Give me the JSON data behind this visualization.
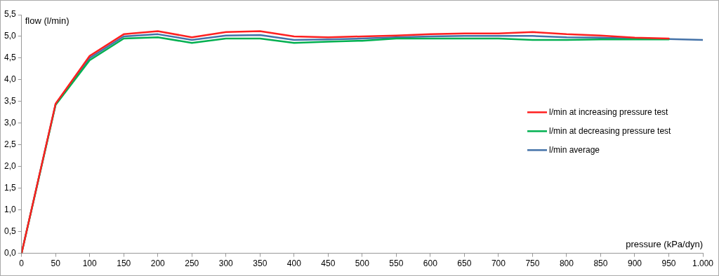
{
  "chart_data": {
    "type": "line",
    "xlabel": "pressure (kPa/dyn)",
    "ylabel": "flow (l/min)",
    "xlim": [
      0,
      1000
    ],
    "xticks": [
      0,
      50,
      100,
      150,
      200,
      250,
      300,
      350,
      400,
      450,
      500,
      550,
      600,
      650,
      700,
      750,
      800,
      850,
      900,
      950,
      {
        "value": 1000,
        "label": "1.000"
      }
    ],
    "ylim": [
      0,
      5.5
    ],
    "yticks": [
      {
        "value": 0,
        "label": "0,0"
      },
      {
        "value": 0.5,
        "label": "0,5"
      },
      {
        "value": 1,
        "label": "1,0"
      },
      {
        "value": 1.5,
        "label": "1,5"
      },
      {
        "value": 2,
        "label": "2,0"
      },
      {
        "value": 2.5,
        "label": "2,5"
      },
      {
        "value": 3,
        "label": "3,0"
      },
      {
        "value": 3.5,
        "label": "3,5"
      },
      {
        "value": 4,
        "label": "4,0"
      },
      {
        "value": 4.5,
        "label": "4,5"
      },
      {
        "value": 5,
        "label": "5,0"
      },
      {
        "value": 5.5,
        "label": "5,5"
      }
    ],
    "x": [
      0,
      50,
      100,
      150,
      200,
      250,
      300,
      350,
      400,
      450,
      500,
      550,
      600,
      650,
      700,
      750,
      800,
      850,
      900,
      950,
      1000
    ],
    "series": [
      {
        "name": "l/min at increasing pressure test",
        "color": "#ff2020",
        "values": [
          0,
          3.45,
          4.55,
          5.05,
          5.12,
          4.98,
          5.1,
          5.12,
          5.0,
          4.98,
          5.0,
          5.02,
          5.05,
          5.07,
          5.07,
          5.1,
          5.05,
          5.02,
          4.97,
          4.95,
          null
        ]
      },
      {
        "name": "l/min at decreasing pressure test",
        "color": "#00b050",
        "values": [
          0,
          3.42,
          4.45,
          4.95,
          4.98,
          4.85,
          4.95,
          4.95,
          4.85,
          4.88,
          4.9,
          4.95,
          4.95,
          4.95,
          4.95,
          4.92,
          4.92,
          4.93,
          4.93,
          4.93,
          null
        ]
      },
      {
        "name": "l/min average",
        "color": "#4472a8",
        "values": [
          0,
          3.44,
          4.5,
          5.0,
          5.05,
          4.92,
          5.02,
          5.03,
          4.92,
          4.93,
          4.95,
          4.98,
          5.0,
          5.01,
          5.01,
          5.01,
          4.98,
          4.97,
          4.95,
          4.94,
          4.92
        ]
      }
    ],
    "legend": "right",
    "grid": false,
    "marker": "none",
    "line_style": "solid"
  }
}
